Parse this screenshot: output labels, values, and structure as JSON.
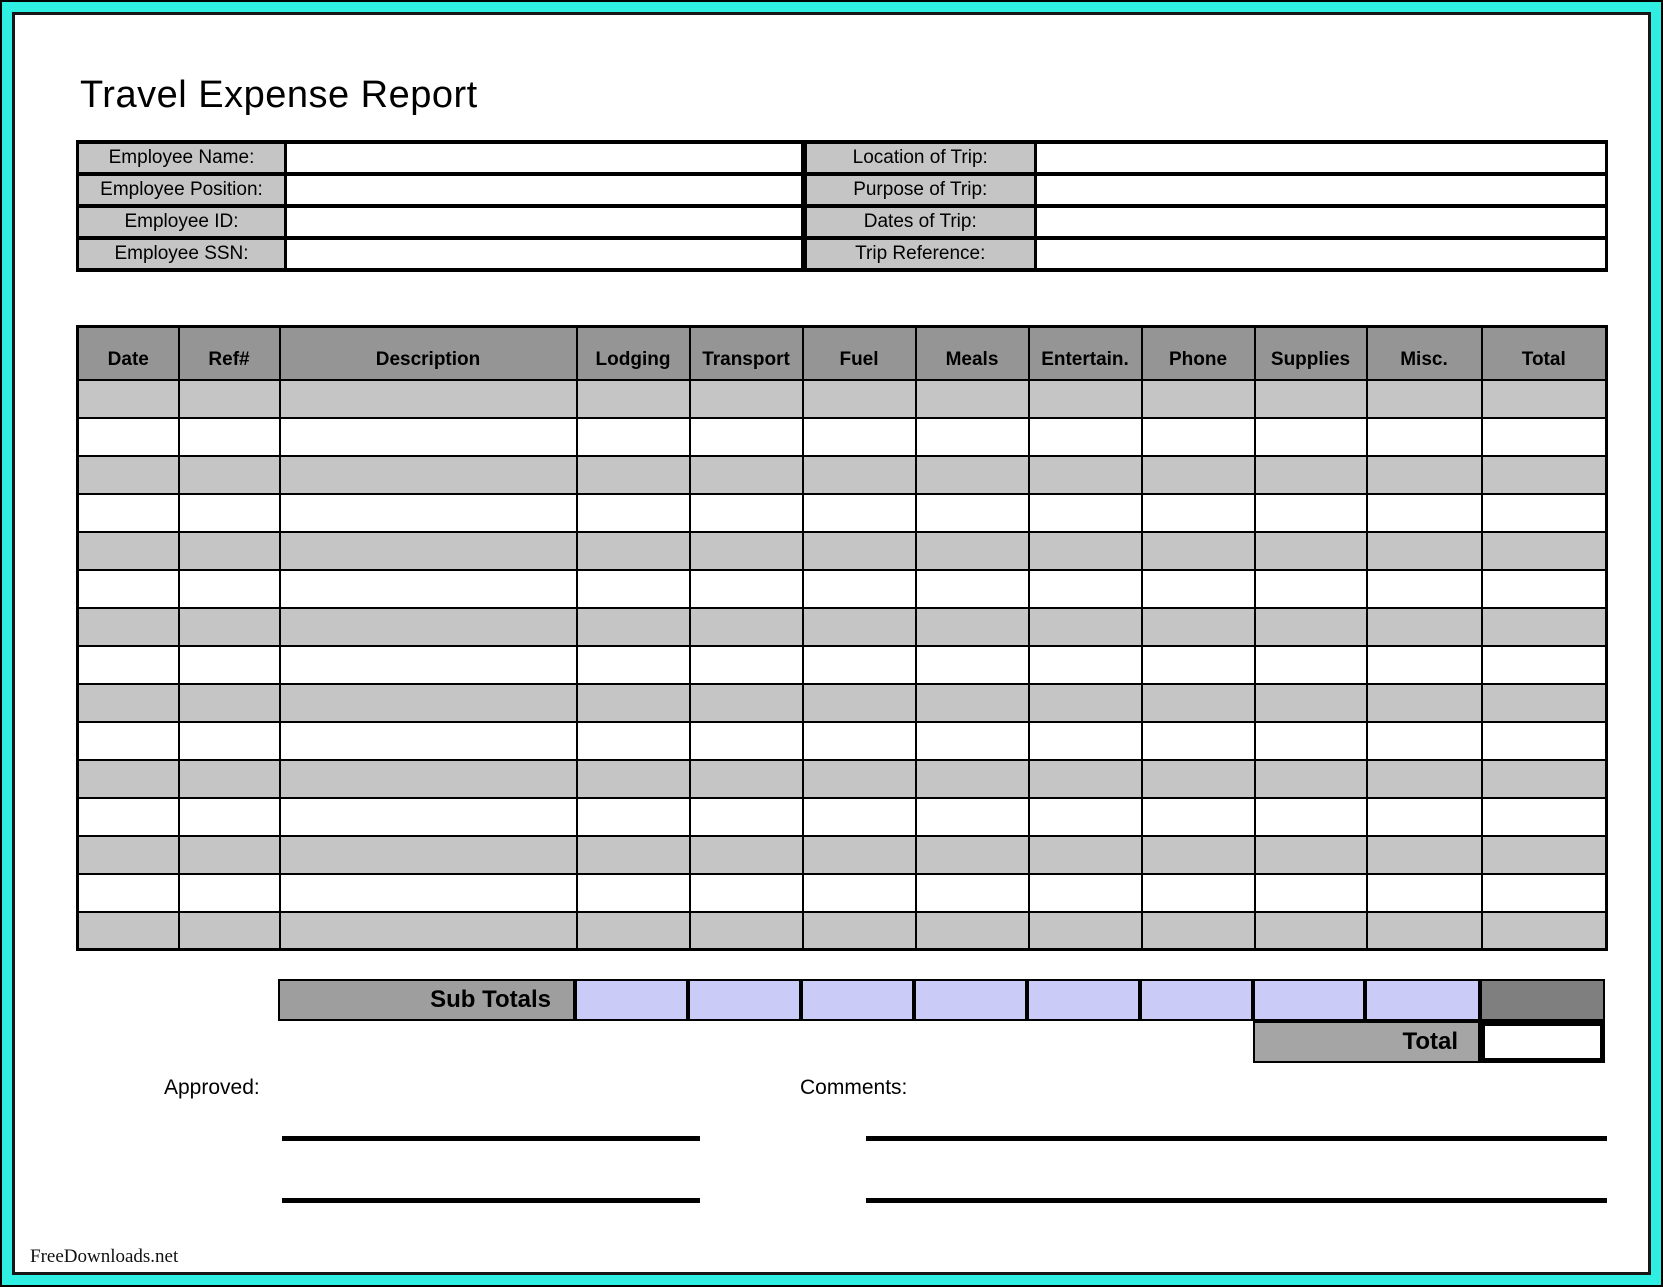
{
  "title": "Travel Expense Report",
  "employee_info": {
    "rows": [
      {
        "left_label": "Employee Name:",
        "left_value": "",
        "right_label": "Location of Trip:",
        "right_value": ""
      },
      {
        "left_label": "Employee Position:",
        "left_value": "",
        "right_label": "Purpose of Trip:",
        "right_value": ""
      },
      {
        "left_label": "Employee ID:",
        "left_value": "",
        "right_label": "Dates of Trip:",
        "right_value": ""
      },
      {
        "left_label": "Employee SSN:",
        "left_value": "",
        "right_label": "Trip Reference:",
        "right_value": ""
      }
    ]
  },
  "expense_table": {
    "columns": [
      "Date",
      "Ref#",
      "Description",
      "Lodging",
      "Transport",
      "Fuel",
      "Meals",
      "Entertain.",
      "Phone",
      "Supplies",
      "Misc.",
      "Total"
    ],
    "rows": [
      [
        "",
        "",
        "",
        "",
        "",
        "",
        "",
        "",
        "",
        "",
        "",
        ""
      ],
      [
        "",
        "",
        "",
        "",
        "",
        "",
        "",
        "",
        "",
        "",
        "",
        ""
      ],
      [
        "",
        "",
        "",
        "",
        "",
        "",
        "",
        "",
        "",
        "",
        "",
        ""
      ],
      [
        "",
        "",
        "",
        "",
        "",
        "",
        "",
        "",
        "",
        "",
        "",
        ""
      ],
      [
        "",
        "",
        "",
        "",
        "",
        "",
        "",
        "",
        "",
        "",
        "",
        ""
      ],
      [
        "",
        "",
        "",
        "",
        "",
        "",
        "",
        "",
        "",
        "",
        "",
        ""
      ],
      [
        "",
        "",
        "",
        "",
        "",
        "",
        "",
        "",
        "",
        "",
        "",
        ""
      ],
      [
        "",
        "",
        "",
        "",
        "",
        "",
        "",
        "",
        "",
        "",
        "",
        ""
      ],
      [
        "",
        "",
        "",
        "",
        "",
        "",
        "",
        "",
        "",
        "",
        "",
        ""
      ],
      [
        "",
        "",
        "",
        "",
        "",
        "",
        "",
        "",
        "",
        "",
        "",
        ""
      ],
      [
        "",
        "",
        "",
        "",
        "",
        "",
        "",
        "",
        "",
        "",
        "",
        ""
      ],
      [
        "",
        "",
        "",
        "",
        "",
        "",
        "",
        "",
        "",
        "",
        "",
        ""
      ],
      [
        "",
        "",
        "",
        "",
        "",
        "",
        "",
        "",
        "",
        "",
        "",
        ""
      ],
      [
        "",
        "",
        "",
        "",
        "",
        "",
        "",
        "",
        "",
        "",
        "",
        ""
      ],
      [
        "",
        "",
        "",
        "",
        "",
        "",
        "",
        "",
        "",
        "",
        "",
        ""
      ]
    ],
    "sub_totals": {
      "label": "Sub Totals",
      "values": [
        "",
        "",
        "",
        "",
        "",
        "",
        "",
        ""
      ],
      "total_value": ""
    },
    "total_row": {
      "label": "Total",
      "value": ""
    }
  },
  "signature": {
    "approved_label": "Approved:",
    "comments_label": "Comments:"
  },
  "footer": "FreeDownloads.net",
  "colors": {
    "frame_teal": "#2EEFE1",
    "header_gray": "#959595",
    "row_gray": "#C5C5C5",
    "label_gray": "#C5C5C5",
    "subtotal_label_gray": "#9E9E9E",
    "subtotal_total_gray": "#7F7F7F",
    "total_label_gray": "#A5A5A5",
    "lavender": "#CBCBF7"
  }
}
